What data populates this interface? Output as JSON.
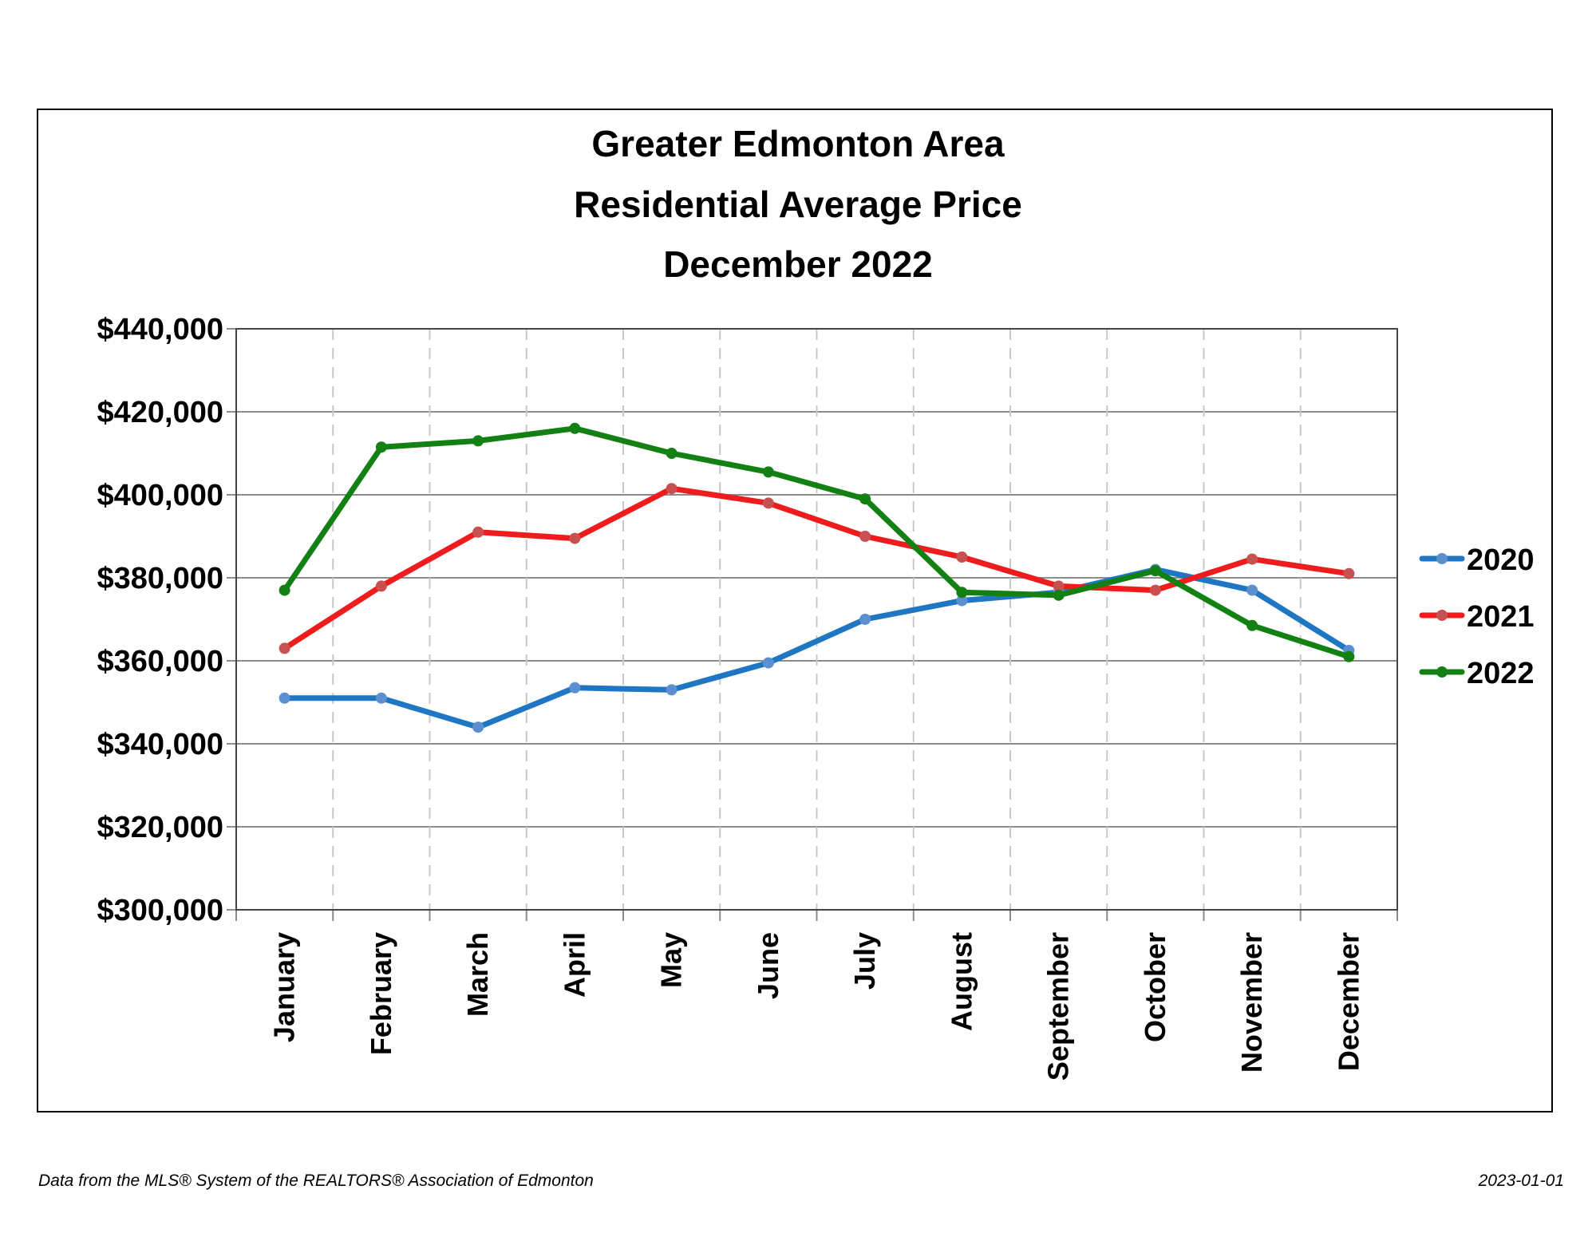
{
  "footer": {
    "source": "Data from the MLS® System of the REALTORS® Association of Edmonton",
    "date": "2023-01-01"
  },
  "chart_data": {
    "type": "line",
    "title": [
      "Greater Edmonton Area",
      "Residential Average Price",
      "December 2022"
    ],
    "xlabel": "",
    "ylabel": "",
    "categories": [
      "January",
      "February",
      "March",
      "April",
      "May",
      "June",
      "July",
      "August",
      "September",
      "October",
      "November",
      "December"
    ],
    "ylim": [
      300000,
      440000
    ],
    "yticks": [
      300000,
      320000,
      340000,
      360000,
      380000,
      400000,
      420000,
      440000
    ],
    "ytick_labels": [
      "$300,000",
      "$320,000",
      "$340,000",
      "$360,000",
      "$380,000",
      "$400,000",
      "$420,000",
      "$440,000"
    ],
    "grid": {
      "horizontal": true,
      "vertical_dashed": true
    },
    "legend_position": "right",
    "series": [
      {
        "name": "2020",
        "color": "#1f77c4",
        "marker_color": "#5b8fd0",
        "values": [
          351000,
          351000,
          344000,
          353500,
          353000,
          359500,
          370000,
          374500,
          376500,
          382000,
          377000,
          362500
        ]
      },
      {
        "name": "2021",
        "color": "#ee1c1c",
        "marker_color": "#c85050",
        "values": [
          363000,
          378000,
          391000,
          389500,
          401500,
          398000,
          390000,
          385000,
          378000,
          377000,
          384500,
          381000
        ]
      },
      {
        "name": "2022",
        "color": "#138013",
        "marker_color": "#138013",
        "values": [
          377000,
          411500,
          413000,
          416000,
          410000,
          405500,
          399000,
          376500,
          375800,
          381700,
          368500,
          361000
        ]
      }
    ]
  }
}
